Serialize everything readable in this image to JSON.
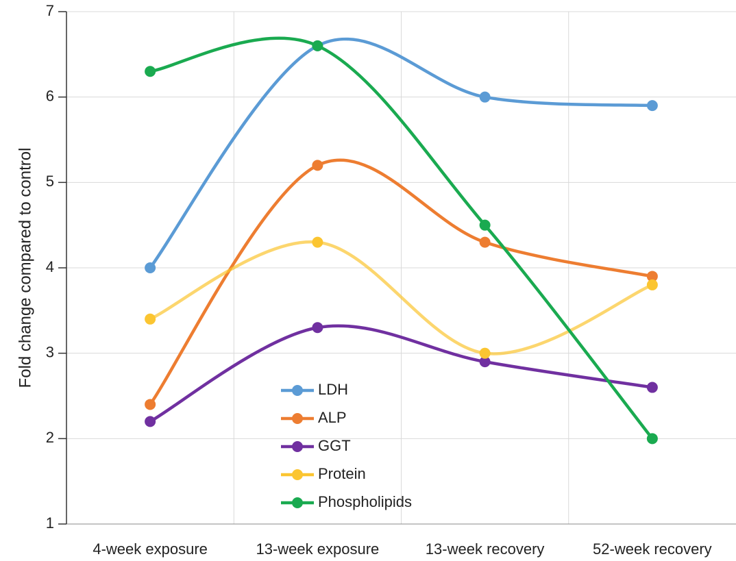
{
  "chart_data": {
    "type": "line",
    "y_label": "Fold change compared to control",
    "categories": [
      "4-week exposure",
      "13-week exposure",
      "13-week recovery",
      "52-week recovery"
    ],
    "series": [
      {
        "name": "LDH",
        "color": "#5b9bd5",
        "values": [
          4.0,
          6.6,
          6.0,
          5.9
        ]
      },
      {
        "name": "ALP",
        "color": "#ed7d31",
        "values": [
          2.4,
          5.2,
          4.3,
          3.9
        ]
      },
      {
        "name": "GGT",
        "color": "#7030a0",
        "values": [
          2.2,
          3.3,
          2.9,
          2.6
        ]
      },
      {
        "name": "Protein",
        "color": "#fbc531",
        "values": [
          3.4,
          4.3,
          3.0,
          3.8
        ]
      },
      {
        "name": "Phospholipids",
        "color": "#1aaa50",
        "values": [
          6.3,
          6.6,
          4.5,
          2.0
        ]
      }
    ],
    "ylim": [
      1,
      7
    ],
    "yticks": [
      1,
      2,
      3,
      4,
      5,
      6,
      7
    ],
    "grid": true,
    "smooth": true
  }
}
